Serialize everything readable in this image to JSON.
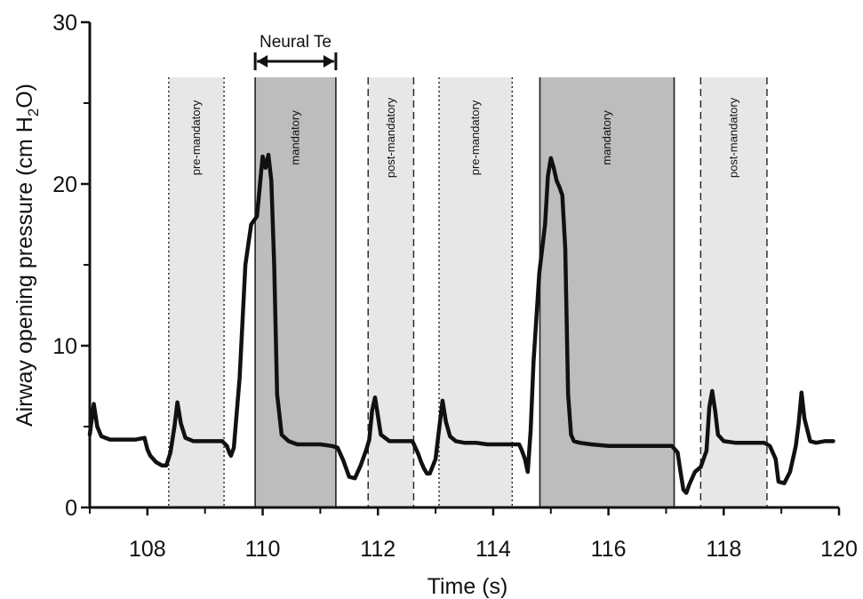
{
  "chart_data": {
    "type": "line",
    "xlabel": "Time (s)",
    "ylabel_parts": {
      "prefix": "Airway opening pressure (cm H",
      "subscript": "2",
      "suffix": "O)"
    },
    "xlim": [
      107.0,
      120.0
    ],
    "ylim": [
      0,
      30
    ],
    "xticks": [
      108,
      110,
      112,
      114,
      116,
      118,
      120
    ],
    "xtick_labels": [
      "108",
      "110",
      "112",
      "114",
      "116",
      "118",
      "120"
    ],
    "xticks_minor": [
      107,
      109,
      111,
      113,
      115,
      117,
      119
    ],
    "yticks": [
      0,
      10,
      20,
      30
    ],
    "ytick_labels": [
      "0",
      "10",
      "20",
      "30"
    ],
    "yticks_minor": [
      5,
      15,
      25
    ],
    "grid": false,
    "legend": "none",
    "regions": [
      {
        "label": "pre-mandatory",
        "x0": 108.37,
        "x1": 109.33,
        "shade": "#e7e7e7",
        "border": "dotted"
      },
      {
        "label": "mandatory",
        "x0": 109.87,
        "x1": 111.27,
        "shade": "#bdbdbd",
        "border": "solid"
      },
      {
        "label": "post-mandatory",
        "x0": 111.83,
        "x1": 112.62,
        "shade": "#e7e7e7",
        "border": "dashed"
      },
      {
        "label": "pre-mandatory",
        "x0": 113.06,
        "x1": 114.33,
        "shade": "#e7e7e7",
        "border": "dotted"
      },
      {
        "label": "mandatory",
        "x0": 114.81,
        "x1": 117.14,
        "shade": "#bdbdbd",
        "border": "solid"
      },
      {
        "label": "post-mandatory",
        "x0": 117.6,
        "x1": 118.75,
        "shade": "#e7e7e7",
        "border": "dashed"
      }
    ],
    "annotation": {
      "label": "Neural Te",
      "x0": 109.87,
      "x1": 111.27
    },
    "series": [
      {
        "color": "#111111",
        "x": [
          107.0,
          107.07,
          107.13,
          107.2,
          107.35,
          107.6,
          107.8,
          107.95,
          108.0,
          108.05,
          108.15,
          108.25,
          108.33,
          108.4,
          108.47,
          108.52,
          108.58,
          108.66,
          108.8,
          109.0,
          109.2,
          109.3,
          109.38,
          109.42,
          109.45,
          109.5,
          109.6,
          109.7,
          109.8,
          109.9,
          110.0,
          110.05,
          110.1,
          110.15,
          110.2,
          110.25,
          110.33,
          110.45,
          110.6,
          110.8,
          111.0,
          111.2,
          111.3,
          111.4,
          111.5,
          111.6,
          111.7,
          111.8,
          111.85,
          111.9,
          111.95,
          112.05,
          112.2,
          112.4,
          112.6,
          112.7,
          112.75,
          112.8,
          112.85,
          112.9,
          113.0,
          113.05,
          113.12,
          113.18,
          113.25,
          113.35,
          113.5,
          113.7,
          113.9,
          114.1,
          114.3,
          114.45,
          114.5,
          114.55,
          114.6,
          114.65,
          114.7,
          114.8,
          114.9,
          114.95,
          115.0,
          115.05,
          115.1,
          115.15,
          115.2,
          115.25,
          115.3,
          115.35,
          115.4,
          115.5,
          115.7,
          116.0,
          116.3,
          116.6,
          116.9,
          117.1,
          117.2,
          117.25,
          117.3,
          117.35,
          117.4,
          117.5,
          117.6,
          117.7,
          117.75,
          117.8,
          117.85,
          117.9,
          118.0,
          118.2,
          118.5,
          118.7,
          118.8,
          118.9,
          118.95,
          119.05,
          119.15,
          119.25,
          119.3,
          119.35,
          119.4,
          119.5,
          119.6,
          119.75,
          119.9
        ],
        "y": [
          4.5,
          6.4,
          5.0,
          4.4,
          4.2,
          4.2,
          4.2,
          4.3,
          3.6,
          3.2,
          2.8,
          2.6,
          2.6,
          3.4,
          5.0,
          6.5,
          5.2,
          4.3,
          4.1,
          4.1,
          4.1,
          4.1,
          3.8,
          3.4,
          3.2,
          3.7,
          8.0,
          15.0,
          17.5,
          18.0,
          21.7,
          21.0,
          21.8,
          20.2,
          15.0,
          7.0,
          4.5,
          4.1,
          3.9,
          3.9,
          3.9,
          3.8,
          3.7,
          2.9,
          1.9,
          1.8,
          2.6,
          3.6,
          4.2,
          6.0,
          6.8,
          4.5,
          4.1,
          4.1,
          4.1,
          3.3,
          2.8,
          2.4,
          2.1,
          2.1,
          3.0,
          4.5,
          6.6,
          5.3,
          4.4,
          4.1,
          4.0,
          4.0,
          3.9,
          3.9,
          3.9,
          3.9,
          3.5,
          3.0,
          2.2,
          4.8,
          9.0,
          14.5,
          17.5,
          20.5,
          21.6,
          21.0,
          20.2,
          19.8,
          19.3,
          16.0,
          7.0,
          4.5,
          4.1,
          4.0,
          3.9,
          3.8,
          3.8,
          3.8,
          3.8,
          3.8,
          3.4,
          2.2,
          1.1,
          0.9,
          1.4,
          2.2,
          2.5,
          3.5,
          6.2,
          7.2,
          6.0,
          4.5,
          4.1,
          4.0,
          4.0,
          4.0,
          3.8,
          3.0,
          1.6,
          1.5,
          2.2,
          3.8,
          5.2,
          7.1,
          5.5,
          4.1,
          4.0,
          4.1,
          4.1
        ]
      }
    ]
  }
}
